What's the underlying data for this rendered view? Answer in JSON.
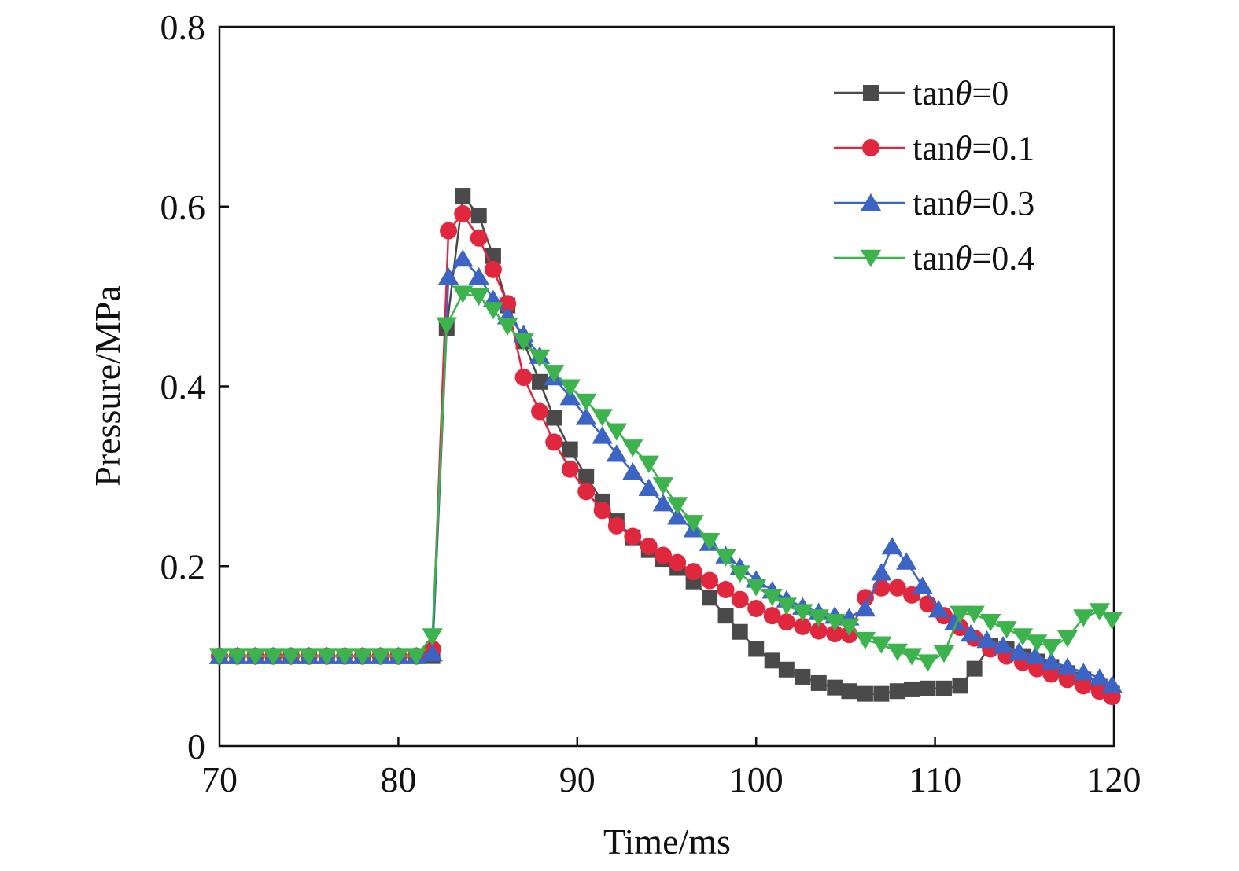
{
  "chart_data": {
    "type": "line",
    "title": "",
    "xlabel": "Time/ms",
    "ylabel": "Pressure/MPa",
    "xlim": [
      70,
      120
    ],
    "ylim": [
      0,
      0.8
    ],
    "xticks": [
      "70",
      "80",
      "90",
      "100",
      "110",
      "120"
    ],
    "yticks": [
      "0",
      "0.2",
      "0.4",
      "0.6",
      "0.8"
    ],
    "grid": false,
    "legend_position": "top-right",
    "series": [
      {
        "name_prefix": "tan",
        "name_symbol": "θ",
        "name_suffix": "=0",
        "color": "#4a4a4a",
        "marker": "square",
        "x": [
          70,
          71,
          72,
          73,
          74,
          75,
          76,
          77,
          78,
          79,
          80,
          81,
          81.9,
          82.7,
          83.6,
          84.5,
          85.3,
          86.1,
          87,
          87.9,
          88.7,
          89.6,
          90.5,
          91.4,
          92.2,
          93.1,
          94,
          94.8,
          95.6,
          96.5,
          97.4,
          98.3,
          99.1,
          100,
          100.9,
          101.7,
          102.6,
          103.5,
          104.4,
          105.2,
          106.1,
          107,
          107.9,
          108.7,
          109.6,
          110.5,
          111.4,
          112.2,
          113.1,
          114,
          114.9,
          115.7,
          116.5,
          117.4,
          118.3,
          119.2,
          119.9
        ],
        "y": [
          0.1,
          0.1,
          0.1,
          0.1,
          0.1,
          0.1,
          0.1,
          0.1,
          0.1,
          0.1,
          0.1,
          0.1,
          0.1,
          0.465,
          0.612,
          0.59,
          0.545,
          0.49,
          0.45,
          0.405,
          0.365,
          0.33,
          0.3,
          0.272,
          0.25,
          0.232,
          0.218,
          0.208,
          0.198,
          0.183,
          0.165,
          0.145,
          0.127,
          0.108,
          0.095,
          0.085,
          0.077,
          0.07,
          0.065,
          0.061,
          0.058,
          0.058,
          0.061,
          0.063,
          0.064,
          0.064,
          0.067,
          0.086,
          0.111,
          0.108,
          0.1,
          0.094,
          0.088,
          0.081,
          0.074,
          0.066,
          0.058
        ]
      },
      {
        "name_prefix": "tan",
        "name_symbol": "θ",
        "name_suffix": "=0.1",
        "color": "#e0273e",
        "marker": "circle",
        "x": [
          70,
          71,
          72,
          73,
          74,
          75,
          76,
          77,
          78,
          79,
          80,
          81,
          81.9,
          82.8,
          83.6,
          84.5,
          85.3,
          86.1,
          87,
          87.9,
          88.7,
          89.6,
          90.5,
          91.4,
          92.2,
          93.1,
          94,
          94.8,
          95.6,
          96.5,
          97.4,
          98.3,
          99.1,
          100,
          100.9,
          101.7,
          102.6,
          103.5,
          104.4,
          105.2,
          106.1,
          107,
          107.9,
          108.7,
          109.6,
          110.5,
          111.4,
          112.2,
          113.1,
          114,
          114.9,
          115.7,
          116.5,
          117.4,
          118.3,
          119.2,
          119.9
        ],
        "y": [
          0.1,
          0.1,
          0.1,
          0.1,
          0.1,
          0.1,
          0.1,
          0.1,
          0.1,
          0.1,
          0.1,
          0.1,
          0.108,
          0.573,
          0.592,
          0.565,
          0.53,
          0.492,
          0.41,
          0.372,
          0.338,
          0.308,
          0.283,
          0.262,
          0.245,
          0.233,
          0.222,
          0.212,
          0.204,
          0.194,
          0.184,
          0.174,
          0.163,
          0.153,
          0.145,
          0.138,
          0.133,
          0.128,
          0.125,
          0.124,
          0.165,
          0.176,
          0.176,
          0.168,
          0.158,
          0.145,
          0.132,
          0.12,
          0.108,
          0.1,
          0.093,
          0.086,
          0.08,
          0.074,
          0.067,
          0.061,
          0.055
        ]
      },
      {
        "name_prefix": "tan",
        "name_symbol": "θ",
        "name_suffix": "=0.3",
        "color": "#3b64c4",
        "marker": "triangle-up",
        "x": [
          70,
          71,
          72,
          73,
          74,
          75,
          76,
          77,
          78,
          79,
          80,
          81,
          81.9,
          82.8,
          83.6,
          84.5,
          85.3,
          86.1,
          87,
          87.9,
          88.7,
          89.6,
          90.5,
          91.4,
          92.2,
          93.1,
          94,
          94.8,
          95.6,
          96.5,
          97.4,
          98.3,
          99.1,
          100,
          100.9,
          101.7,
          102.6,
          103.5,
          104.4,
          105.2,
          106.1,
          107,
          107.6,
          108.4,
          109.3,
          110.2,
          111.1,
          112,
          112.9,
          113.8,
          114.7,
          115.6,
          116.5,
          117.4,
          118.3,
          119.2,
          119.9
        ],
        "y": [
          0.1,
          0.1,
          0.1,
          0.1,
          0.1,
          0.1,
          0.1,
          0.1,
          0.1,
          0.1,
          0.1,
          0.1,
          0.103,
          0.522,
          0.542,
          0.522,
          0.497,
          0.478,
          0.458,
          0.434,
          0.41,
          0.388,
          0.366,
          0.345,
          0.325,
          0.305,
          0.287,
          0.27,
          0.255,
          0.241,
          0.226,
          0.212,
          0.199,
          0.185,
          0.173,
          0.163,
          0.155,
          0.149,
          0.145,
          0.143,
          0.153,
          0.193,
          0.222,
          0.205,
          0.178,
          0.152,
          0.138,
          0.125,
          0.118,
          0.112,
          0.105,
          0.1,
          0.094,
          0.088,
          0.082,
          0.076,
          0.068
        ]
      },
      {
        "name_prefix": "tan",
        "name_symbol": "θ",
        "name_suffix": "=0.4",
        "color": "#3db34e",
        "marker": "triangle-down",
        "x": [
          70,
          71,
          72,
          73,
          74,
          75,
          76,
          77,
          78,
          79,
          80,
          81,
          81.9,
          82.7,
          83.6,
          84.5,
          85.3,
          86.1,
          87,
          87.9,
          88.7,
          89.6,
          90.5,
          91.4,
          92.2,
          93.1,
          94,
          94.8,
          95.6,
          96.5,
          97.4,
          98.3,
          99.1,
          100,
          100.9,
          101.7,
          102.6,
          103.5,
          104.4,
          105.2,
          106.1,
          107,
          107.9,
          108.7,
          109.6,
          110.5,
          111.4,
          112.2,
          113.1,
          114,
          114.9,
          115.7,
          116.5,
          117.4,
          118.3,
          119.2,
          119.9
        ],
        "y": [
          0.1,
          0.1,
          0.1,
          0.1,
          0.1,
          0.1,
          0.1,
          0.1,
          0.1,
          0.1,
          0.1,
          0.1,
          0.122,
          0.468,
          0.503,
          0.5,
          0.485,
          0.467,
          0.45,
          0.432,
          0.415,
          0.399,
          0.383,
          0.366,
          0.35,
          0.332,
          0.314,
          0.29,
          0.268,
          0.248,
          0.228,
          0.21,
          0.192,
          0.177,
          0.166,
          0.156,
          0.149,
          0.143,
          0.138,
          0.133,
          0.118,
          0.113,
          0.105,
          0.1,
          0.093,
          0.103,
          0.147,
          0.147,
          0.138,
          0.13,
          0.122,
          0.115,
          0.11,
          0.12,
          0.143,
          0.15,
          0.14
        ]
      }
    ]
  }
}
